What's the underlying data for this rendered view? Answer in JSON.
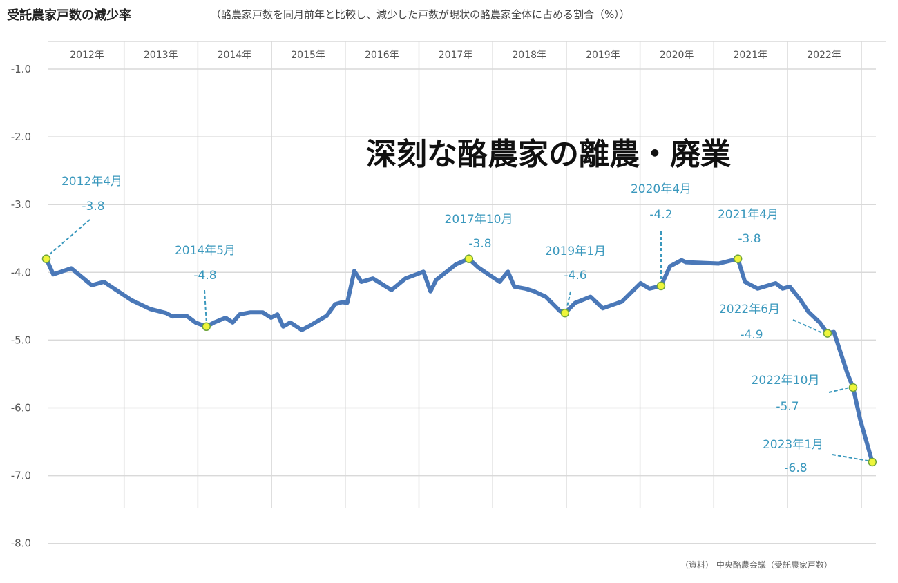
{
  "chart_data": {
    "type": "line",
    "title": "受託農家戸数の減少率",
    "subtitle": "（酪農家戸数を同月前年と比較し、減少した戸数が現状の酪農家全体に占める割合（%））",
    "source": "（資料） 中央酪農会議（受託農家戸数）",
    "headline": "深刻な酪農家の離農・廃業",
    "x_unit": "months since 2012年4月",
    "xlim": [
      0,
      129
    ],
    "ylim": [
      -8.0,
      -1.0
    ],
    "yticks": [
      "-1.0",
      "-2.0",
      "-3.0",
      "-4.0",
      "-5.0",
      "-6.0",
      "-7.0",
      "-8.0"
    ],
    "ytick_values": [
      -1,
      -2,
      -3,
      -4,
      -5,
      -6,
      -7,
      -8
    ],
    "year_labels": [
      "2012年",
      "2013年",
      "2014年",
      "2015年",
      "2016年",
      "2017年",
      "2018年",
      "2019年",
      "2020年",
      "2021年",
      "2022年"
    ],
    "grid": true,
    "series": [
      {
        "name": "減少率",
        "color": "#4a78b8",
        "points": [
          [
            0,
            -3.8
          ],
          [
            1.1,
            -4.03
          ],
          [
            3.9,
            -3.94
          ],
          [
            7.1,
            -4.19
          ],
          [
            9,
            -4.14
          ],
          [
            13.3,
            -4.41
          ],
          [
            16.2,
            -4.54
          ],
          [
            18.7,
            -4.6
          ],
          [
            19.7,
            -4.65
          ],
          [
            21.9,
            -4.64
          ],
          [
            23.3,
            -4.74
          ],
          [
            25,
            -4.8
          ],
          [
            26.2,
            -4.74
          ],
          [
            28,
            -4.67
          ],
          [
            29.1,
            -4.74
          ],
          [
            30.2,
            -4.62
          ],
          [
            31.9,
            -4.59
          ],
          [
            33.8,
            -4.59
          ],
          [
            35.1,
            -4.67
          ],
          [
            36.1,
            -4.62
          ],
          [
            37,
            -4.8
          ],
          [
            38.1,
            -4.74
          ],
          [
            39.9,
            -4.85
          ],
          [
            41.1,
            -4.79
          ],
          [
            43.8,
            -4.64
          ],
          [
            45.1,
            -4.47
          ],
          [
            46.2,
            -4.44
          ],
          [
            47,
            -4.45
          ],
          [
            48.1,
            -3.98
          ],
          [
            49.2,
            -4.14
          ],
          [
            51,
            -4.09
          ],
          [
            53.9,
            -4.26
          ],
          [
            56.1,
            -4.09
          ],
          [
            58.9,
            -3.99
          ],
          [
            60,
            -4.28
          ],
          [
            60.9,
            -4.11
          ],
          [
            64,
            -3.88
          ],
          [
            66,
            -3.8
          ],
          [
            67.5,
            -3.93
          ],
          [
            70.8,
            -4.14
          ],
          [
            72.1,
            -3.99
          ],
          [
            73.1,
            -4.21
          ],
          [
            74.8,
            -4.24
          ],
          [
            76.2,
            -4.28
          ],
          [
            78,
            -4.36
          ],
          [
            80.2,
            -4.57
          ],
          [
            81,
            -4.6
          ],
          [
            82.6,
            -4.45
          ],
          [
            85,
            -4.36
          ],
          [
            86.9,
            -4.53
          ],
          [
            89.9,
            -4.43
          ],
          [
            92.8,
            -4.16
          ],
          [
            94.2,
            -4.24
          ],
          [
            96,
            -4.2
          ],
          [
            97.4,
            -3.91
          ],
          [
            99.2,
            -3.82
          ],
          [
            99.9,
            -3.85
          ],
          [
            105,
            -3.87
          ],
          [
            108,
            -3.8
          ],
          [
            109.1,
            -4.14
          ],
          [
            111.1,
            -4.24
          ],
          [
            113.9,
            -4.16
          ],
          [
            115,
            -4.24
          ],
          [
            116.1,
            -4.21
          ],
          [
            117.8,
            -4.41
          ],
          [
            119,
            -4.58
          ],
          [
            120.8,
            -4.74
          ],
          [
            122,
            -4.9
          ],
          [
            123,
            -4.88
          ],
          [
            125.1,
            -5.49
          ],
          [
            126,
            -5.7
          ],
          [
            127.1,
            -6.17
          ],
          [
            129,
            -6.8
          ]
        ]
      }
    ],
    "annotations": [
      {
        "date": "2012年4月",
        "m": 0,
        "value": -3.8,
        "label": "-3.8"
      },
      {
        "date": "2014年5月",
        "m": 25,
        "value": -4.8,
        "label": "-4.8"
      },
      {
        "date": "2017年10月",
        "m": 66,
        "value": -3.8,
        "label": "-3.8"
      },
      {
        "date": "2019年1月",
        "m": 81,
        "value": -4.6,
        "label": "-4.6"
      },
      {
        "date": "2020年4月",
        "m": 96,
        "value": -4.2,
        "label": "-4.2"
      },
      {
        "date": "2021年4月",
        "m": 108,
        "value": -3.8,
        "label": "-3.8"
      },
      {
        "date": "2022年6月",
        "m": 122,
        "value": -4.9,
        "label": "-4.9"
      },
      {
        "date": "2022年10月",
        "m": 126,
        "value": -5.7,
        "label": "-5.7"
      },
      {
        "date": "2023年1月",
        "m": 129,
        "value": -6.8,
        "label": "-6.8"
      }
    ]
  }
}
